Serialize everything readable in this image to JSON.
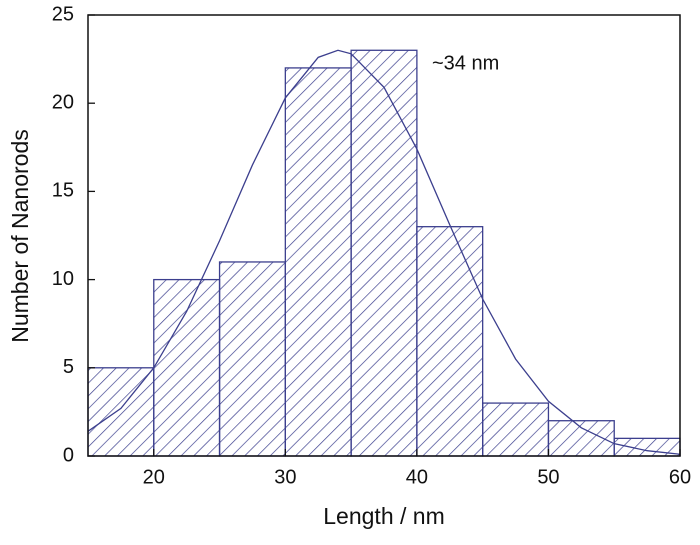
{
  "chart_data": {
    "type": "histogram",
    "x_label": "Length / nm",
    "y_label": "Number of Nanorods",
    "annotation": "~34 nm",
    "bins": [
      15,
      20,
      25,
      30,
      35,
      40,
      45,
      50,
      55,
      60
    ],
    "values": [
      5,
      10,
      11,
      22,
      23,
      13,
      3,
      2,
      1
    ],
    "color": "#3c3f8e",
    "curve": {
      "x": [
        15,
        17.5,
        20,
        22.5,
        25,
        27.5,
        30,
        32.5,
        34,
        35,
        37.5,
        40,
        42.5,
        45,
        47.5,
        50,
        52.5,
        55,
        57.5,
        60
      ],
      "y": [
        1.4,
        2.7,
        5.0,
        8.2,
        12.2,
        16.5,
        20.3,
        22.6,
        23,
        22.8,
        20.9,
        17.4,
        13.1,
        8.9,
        5.5,
        3.1,
        1.6,
        0.7,
        0.3,
        0.1
      ]
    },
    "xlim": [
      15,
      60
    ],
    "xticks": [
      20,
      30,
      40,
      50,
      60
    ],
    "ylim": [
      0,
      25
    ],
    "yticks": [
      0,
      5,
      10,
      15,
      20,
      25
    ]
  }
}
